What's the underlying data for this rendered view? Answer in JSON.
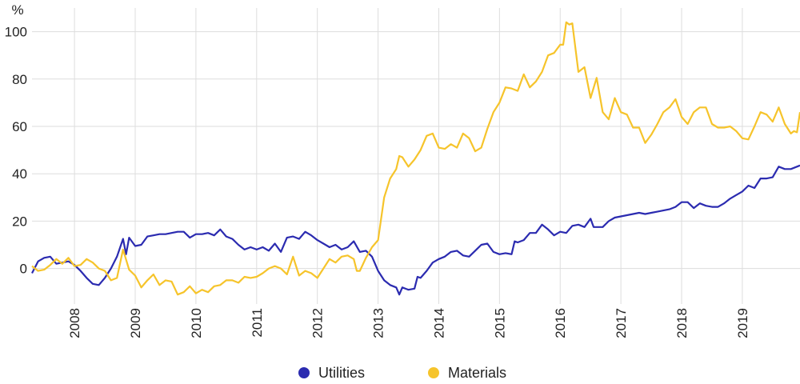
{
  "chart_data": {
    "type": "line",
    "unit_label": "%",
    "grid": true,
    "legend_position": "bottom-center",
    "xlim": [
      2007.3,
      2019.95
    ],
    "ylim": [
      -15,
      110
    ],
    "y_ticks": [
      0,
      20,
      40,
      60,
      80,
      100
    ],
    "x_ticks": [
      "2008",
      "2009",
      "2010",
      "2011",
      "2012",
      "2013",
      "2014",
      "2015",
      "2016",
      "2017",
      "2018",
      "2019"
    ],
    "series": [
      {
        "name": "Utilities",
        "color": "#2b2bb0",
        "points": [
          [
            2007.3,
            -2
          ],
          [
            2007.4,
            3
          ],
          [
            2007.5,
            4.5
          ],
          [
            2007.6,
            5
          ],
          [
            2007.7,
            2
          ],
          [
            2007.8,
            2.5
          ],
          [
            2007.9,
            3
          ],
          [
            2008.0,
            1.5
          ],
          [
            2008.1,
            -1
          ],
          [
            2008.2,
            -4
          ],
          [
            2008.3,
            -6.5
          ],
          [
            2008.4,
            -7
          ],
          [
            2008.5,
            -4
          ],
          [
            2008.6,
            0
          ],
          [
            2008.7,
            5
          ],
          [
            2008.8,
            12.5
          ],
          [
            2008.85,
            6
          ],
          [
            2008.9,
            13
          ],
          [
            2009.0,
            9.5
          ],
          [
            2009.1,
            10
          ],
          [
            2009.2,
            13.5
          ],
          [
            2009.3,
            14
          ],
          [
            2009.4,
            14.5
          ],
          [
            2009.5,
            14.5
          ],
          [
            2009.6,
            15
          ],
          [
            2009.7,
            15.5
          ],
          [
            2009.8,
            15.5
          ],
          [
            2009.9,
            13
          ],
          [
            2010.0,
            14.5
          ],
          [
            2010.1,
            14.5
          ],
          [
            2010.2,
            15
          ],
          [
            2010.3,
            14
          ],
          [
            2010.4,
            16.5
          ],
          [
            2010.5,
            13.5
          ],
          [
            2010.6,
            12.5
          ],
          [
            2010.7,
            10
          ],
          [
            2010.8,
            8
          ],
          [
            2010.9,
            9
          ],
          [
            2011.0,
            8
          ],
          [
            2011.1,
            9
          ],
          [
            2011.2,
            7.5
          ],
          [
            2011.3,
            10.5
          ],
          [
            2011.4,
            7
          ],
          [
            2011.5,
            13
          ],
          [
            2011.6,
            13.5
          ],
          [
            2011.7,
            12.5
          ],
          [
            2011.8,
            15.5
          ],
          [
            2011.9,
            14
          ],
          [
            2012.0,
            12
          ],
          [
            2012.1,
            10.5
          ],
          [
            2012.2,
            9
          ],
          [
            2012.3,
            10
          ],
          [
            2012.4,
            8
          ],
          [
            2012.5,
            9
          ],
          [
            2012.6,
            11.5
          ],
          [
            2012.7,
            7
          ],
          [
            2012.8,
            7.5
          ],
          [
            2012.9,
            5
          ],
          [
            2013.0,
            -1
          ],
          [
            2013.1,
            -5
          ],
          [
            2013.2,
            -7
          ],
          [
            2013.3,
            -8
          ],
          [
            2013.35,
            -11
          ],
          [
            2013.4,
            -8
          ],
          [
            2013.5,
            -9
          ],
          [
            2013.6,
            -8.5
          ],
          [
            2013.65,
            -3.5
          ],
          [
            2013.7,
            -4
          ],
          [
            2013.8,
            -1
          ],
          [
            2013.9,
            2.5
          ],
          [
            2014.0,
            4
          ],
          [
            2014.1,
            5
          ],
          [
            2014.2,
            7
          ],
          [
            2014.3,
            7.5
          ],
          [
            2014.4,
            5.5
          ],
          [
            2014.5,
            5
          ],
          [
            2014.6,
            7.5
          ],
          [
            2014.7,
            10
          ],
          [
            2014.8,
            10.5
          ],
          [
            2014.9,
            7
          ],
          [
            2015.0,
            6
          ],
          [
            2015.1,
            6.5
          ],
          [
            2015.2,
            6
          ],
          [
            2015.25,
            11.5
          ],
          [
            2015.3,
            11
          ],
          [
            2015.4,
            12
          ],
          [
            2015.5,
            15
          ],
          [
            2015.6,
            15
          ],
          [
            2015.7,
            18.5
          ],
          [
            2015.8,
            16.5
          ],
          [
            2015.9,
            14
          ],
          [
            2016.0,
            15.5
          ],
          [
            2016.1,
            15
          ],
          [
            2016.2,
            18
          ],
          [
            2016.3,
            18.5
          ],
          [
            2016.4,
            17.5
          ],
          [
            2016.5,
            21
          ],
          [
            2016.55,
            17.5
          ],
          [
            2016.6,
            17.5
          ],
          [
            2016.7,
            17.5
          ],
          [
            2016.8,
            20
          ],
          [
            2016.9,
            21.5
          ],
          [
            2017.0,
            22
          ],
          [
            2017.1,
            22.5
          ],
          [
            2017.2,
            23
          ],
          [
            2017.3,
            23.5
          ],
          [
            2017.4,
            23
          ],
          [
            2017.5,
            23.5
          ],
          [
            2017.6,
            24
          ],
          [
            2017.7,
            24.5
          ],
          [
            2017.8,
            25
          ],
          [
            2017.9,
            26
          ],
          [
            2018.0,
            28
          ],
          [
            2018.1,
            28
          ],
          [
            2018.2,
            25.5
          ],
          [
            2018.3,
            27.5
          ],
          [
            2018.4,
            26.5
          ],
          [
            2018.5,
            26
          ],
          [
            2018.6,
            26
          ],
          [
            2018.7,
            27.5
          ],
          [
            2018.8,
            29.5
          ],
          [
            2018.9,
            31
          ],
          [
            2019.0,
            32.5
          ],
          [
            2019.1,
            35
          ],
          [
            2019.2,
            34
          ],
          [
            2019.3,
            38
          ],
          [
            2019.4,
            38
          ],
          [
            2019.5,
            38.5
          ],
          [
            2019.6,
            43
          ],
          [
            2019.7,
            42
          ],
          [
            2019.8,
            42
          ],
          [
            2019.9,
            43
          ],
          [
            2019.95,
            43.5
          ]
        ]
      },
      {
        "name": "Materials",
        "color": "#f6c42b",
        "points": [
          [
            2007.3,
            1
          ],
          [
            2007.4,
            -1
          ],
          [
            2007.5,
            -0.5
          ],
          [
            2007.6,
            1.5
          ],
          [
            2007.7,
            4
          ],
          [
            2007.8,
            2
          ],
          [
            2007.9,
            4.5
          ],
          [
            2008.0,
            1
          ],
          [
            2008.1,
            1.5
          ],
          [
            2008.2,
            4
          ],
          [
            2008.3,
            2.5
          ],
          [
            2008.4,
            0
          ],
          [
            2008.5,
            -1
          ],
          [
            2008.55,
            -3
          ],
          [
            2008.6,
            -5
          ],
          [
            2008.7,
            -4
          ],
          [
            2008.8,
            8
          ],
          [
            2008.9,
            -0.5
          ],
          [
            2009.0,
            -3
          ],
          [
            2009.1,
            -8
          ],
          [
            2009.2,
            -5
          ],
          [
            2009.3,
            -2.5
          ],
          [
            2009.4,
            -7
          ],
          [
            2009.5,
            -5
          ],
          [
            2009.6,
            -5.5
          ],
          [
            2009.7,
            -11
          ],
          [
            2009.8,
            -10
          ],
          [
            2009.9,
            -7.5
          ],
          [
            2010.0,
            -10.5
          ],
          [
            2010.1,
            -9
          ],
          [
            2010.2,
            -10
          ],
          [
            2010.3,
            -7.5
          ],
          [
            2010.4,
            -7
          ],
          [
            2010.5,
            -5
          ],
          [
            2010.6,
            -5
          ],
          [
            2010.7,
            -6
          ],
          [
            2010.8,
            -3.5
          ],
          [
            2010.9,
            -4
          ],
          [
            2011.0,
            -3.5
          ],
          [
            2011.1,
            -2
          ],
          [
            2011.2,
            0
          ],
          [
            2011.3,
            1
          ],
          [
            2011.4,
            0
          ],
          [
            2011.5,
            -2.5
          ],
          [
            2011.6,
            5
          ],
          [
            2011.7,
            -3
          ],
          [
            2011.8,
            -1
          ],
          [
            2011.9,
            -2
          ],
          [
            2012.0,
            -4
          ],
          [
            2012.1,
            0
          ],
          [
            2012.2,
            4
          ],
          [
            2012.3,
            2.5
          ],
          [
            2012.4,
            5
          ],
          [
            2012.5,
            5.5
          ],
          [
            2012.6,
            4
          ],
          [
            2012.65,
            -1
          ],
          [
            2012.7,
            -1
          ],
          [
            2012.8,
            4.5
          ],
          [
            2012.9,
            9
          ],
          [
            2013.0,
            12
          ],
          [
            2013.1,
            30
          ],
          [
            2013.2,
            38
          ],
          [
            2013.3,
            42
          ],
          [
            2013.35,
            47.5
          ],
          [
            2013.4,
            47
          ],
          [
            2013.5,
            43
          ],
          [
            2013.6,
            46
          ],
          [
            2013.7,
            50
          ],
          [
            2013.8,
            56
          ],
          [
            2013.9,
            57
          ],
          [
            2014.0,
            51
          ],
          [
            2014.1,
            50.5
          ],
          [
            2014.2,
            52.5
          ],
          [
            2014.3,
            51
          ],
          [
            2014.4,
            57
          ],
          [
            2014.5,
            55
          ],
          [
            2014.6,
            49.5
          ],
          [
            2014.7,
            51
          ],
          [
            2014.8,
            59
          ],
          [
            2014.9,
            66
          ],
          [
            2015.0,
            70
          ],
          [
            2015.1,
            76.5
          ],
          [
            2015.2,
            76
          ],
          [
            2015.3,
            75
          ],
          [
            2015.4,
            82
          ],
          [
            2015.5,
            76.5
          ],
          [
            2015.6,
            79
          ],
          [
            2015.7,
            83
          ],
          [
            2015.8,
            90
          ],
          [
            2015.9,
            91
          ],
          [
            2016.0,
            94.5
          ],
          [
            2016.05,
            94.5
          ],
          [
            2016.1,
            104
          ],
          [
            2016.15,
            103
          ],
          [
            2016.2,
            103.5
          ],
          [
            2016.3,
            83
          ],
          [
            2016.4,
            85
          ],
          [
            2016.5,
            72
          ],
          [
            2016.6,
            80.5
          ],
          [
            2016.7,
            66
          ],
          [
            2016.8,
            63
          ],
          [
            2016.9,
            72
          ],
          [
            2017.0,
            66
          ],
          [
            2017.1,
            65
          ],
          [
            2017.2,
            59.5
          ],
          [
            2017.3,
            59.5
          ],
          [
            2017.4,
            53
          ],
          [
            2017.5,
            56.5
          ],
          [
            2017.6,
            61
          ],
          [
            2017.7,
            66
          ],
          [
            2017.8,
            68
          ],
          [
            2017.9,
            71.5
          ],
          [
            2018.0,
            64
          ],
          [
            2018.1,
            61
          ],
          [
            2018.2,
            66
          ],
          [
            2018.3,
            68
          ],
          [
            2018.4,
            68
          ],
          [
            2018.5,
            61
          ],
          [
            2018.6,
            59.5
          ],
          [
            2018.7,
            59.5
          ],
          [
            2018.8,
            60
          ],
          [
            2018.9,
            58
          ],
          [
            2019.0,
            55
          ],
          [
            2019.1,
            54.5
          ],
          [
            2019.2,
            60
          ],
          [
            2019.3,
            66
          ],
          [
            2019.4,
            65
          ],
          [
            2019.5,
            62
          ],
          [
            2019.6,
            68
          ],
          [
            2019.7,
            61
          ],
          [
            2019.8,
            57
          ],
          [
            2019.85,
            58
          ],
          [
            2019.9,
            57.5
          ],
          [
            2019.95,
            66
          ]
        ]
      }
    ]
  }
}
